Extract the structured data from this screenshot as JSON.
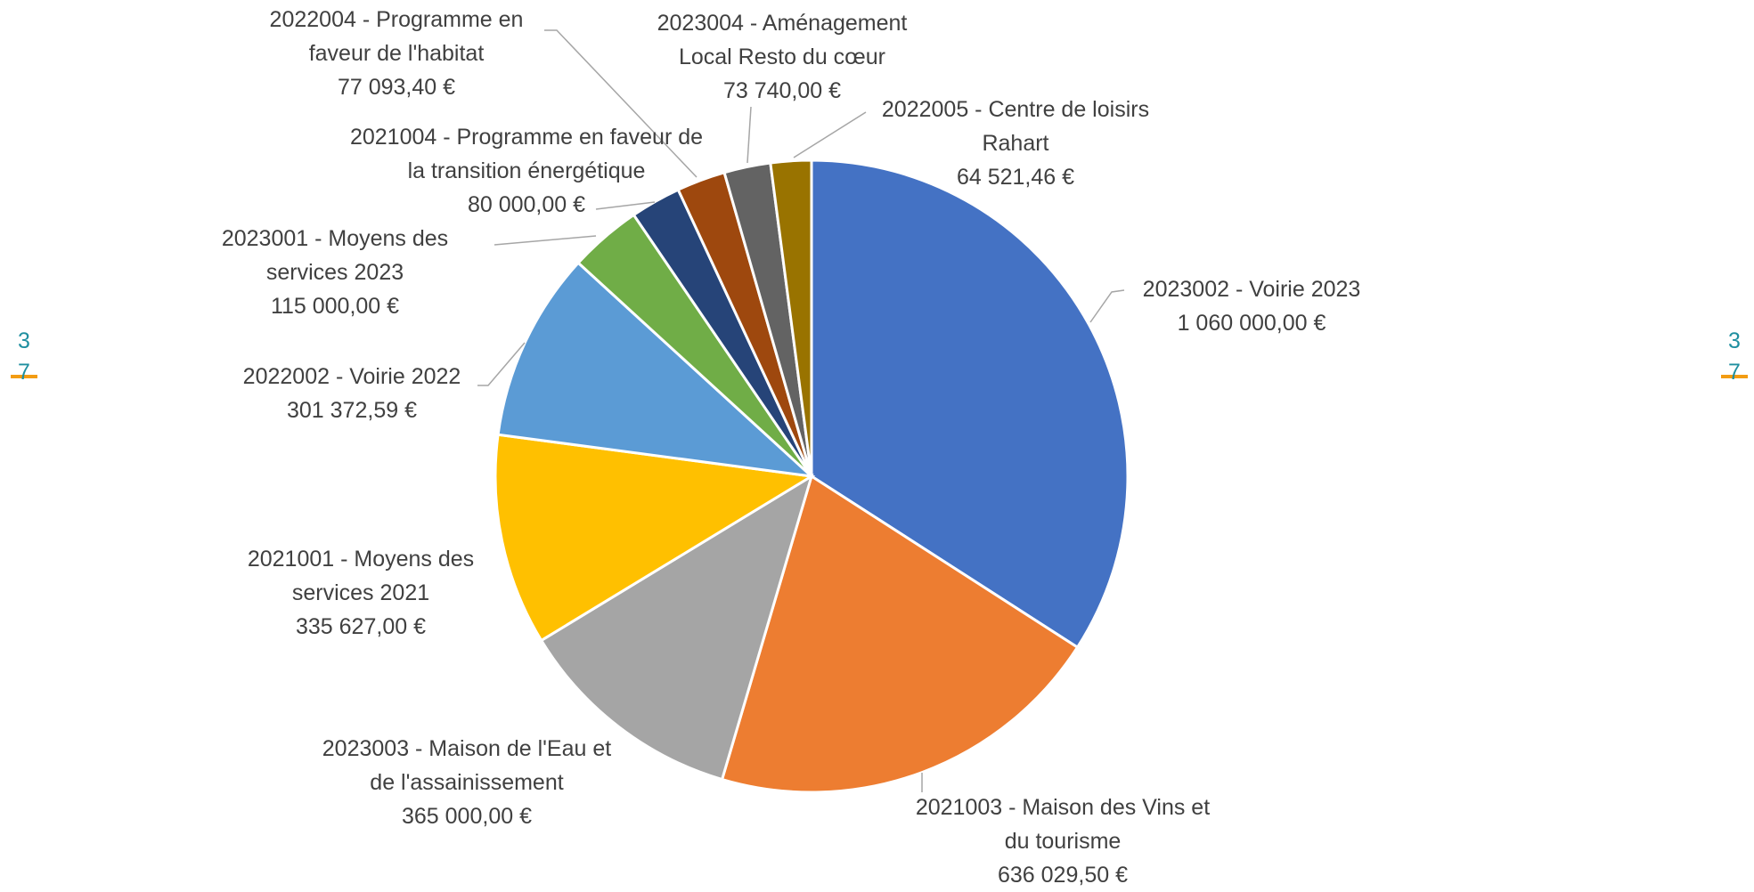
{
  "chart_data": {
    "type": "pie",
    "categories": [
      "2023002 - Voirie 2023",
      "2021003 - Maison des Vins et du tourisme",
      "2023003 - Maison de l'Eau et de l'assainissement",
      "2021001 - Moyens des services 2021",
      "2022002 - Voirie 2022",
      "2023001 - Moyens des services 2023",
      "2021004 - Programme en faveur de la transition énergétique",
      "2022004 - Programme en faveur de l'habitat",
      "2023004 - Aménagement Local Resto du cœur",
      "2022005 - Centre de loisirs Rahart"
    ],
    "values": [
      1060000,
      636029.5,
      365000,
      335627,
      301372.59,
      115000,
      80000,
      77093.4,
      73740,
      64521.46
    ],
    "value_labels": [
      "1 060 000,00 €",
      "636 029,50 €",
      "365 000,00 €",
      "335 627,00 €",
      "301 372,59 €",
      "115 000,00 €",
      "80 000,00 €",
      "77 093,40 €",
      "73 740,00 €",
      "64 521,46 €"
    ],
    "colors": [
      "#4472c4",
      "#ed7d31",
      "#a5a5a5",
      "#ffc000",
      "#5b9bd5",
      "#70ad47",
      "#264478",
      "#9e480e",
      "#636363",
      "#997300"
    ]
  },
  "page_marker": {
    "top": "3",
    "bottom": "7"
  }
}
